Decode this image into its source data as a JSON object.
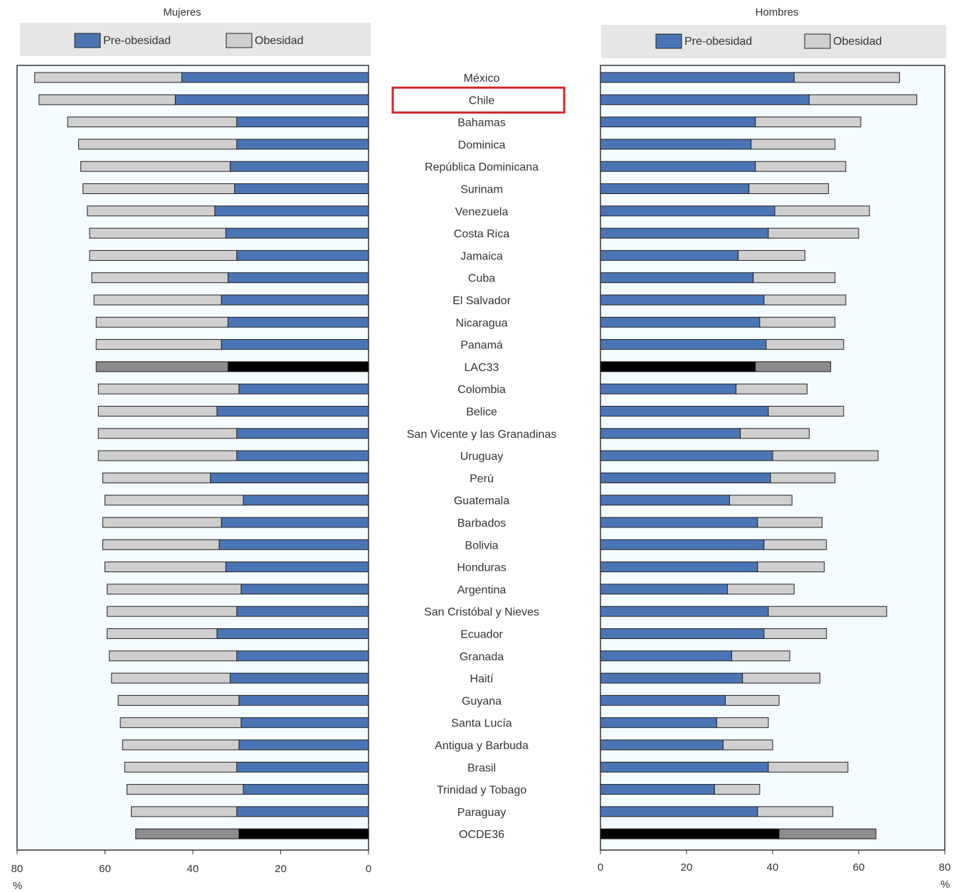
{
  "chart_data": {
    "type": "bar",
    "stacked": true,
    "orientation": "horizontal",
    "unit_label": "%",
    "highlighted": "Chile",
    "legend": [
      "Pre-obesidad",
      "Obesidad"
    ],
    "categories": [
      "México",
      "Chile",
      "Bahamas",
      "Dominica",
      "República Dominicana",
      "Surinam",
      "Venezuela",
      "Costa Rica",
      "Jamaica",
      "Cuba",
      "El Salvador",
      "Nicaragua",
      "Panamá",
      "LAC33",
      "Colombia",
      "Belice",
      "San Vicente y las Granadinas",
      "Uruguay",
      "Perú",
      "Guatemala",
      "Barbados",
      "Bolivia",
      "Honduras",
      "Argentina",
      "San Cristóbal y Nieves",
      "Ecuador",
      "Granada",
      "Haití",
      "Guyana",
      "Santa Lucía",
      "Antigua y Barbuda",
      "Brasil",
      "Trinidad y Tobago",
      "Paraguay",
      "OCDE36"
    ],
    "aggregate_categories": [
      "LAC33",
      "OCDE36"
    ],
    "colors": {
      "pre": "#4a75b5",
      "obe": "#cfcfcf",
      "agg_pre": "#000000",
      "agg_obe": "#8c8c8c",
      "highlight": "#d0282c",
      "panel_bg": "#f5fcff",
      "legend_bg": "#e6e6e6"
    },
    "panels": [
      {
        "title": "Mujeres",
        "xlim": [
          80,
          0
        ],
        "xticks": [
          80,
          60,
          40,
          20,
          0
        ],
        "series": [
          {
            "name": "Pre-obesidad",
            "values": [
              42.5,
              44,
              30,
              30,
              31.5,
              30.5,
              35,
              32.5,
              30,
              32,
              33.5,
              32,
              33.5,
              32,
              29.5,
              34.5,
              30,
              30,
              36,
              28.5,
              33.5,
              34,
              32.5,
              29,
              30,
              34.5,
              30,
              31.5,
              29.5,
              29,
              29.5,
              30,
              28.5,
              30,
              29.5
            ]
          },
          {
            "name": "Obesidad",
            "values": [
              33.5,
              31,
              38.5,
              36,
              34,
              34.5,
              29,
              31,
              33.5,
              31,
              29,
              30,
              28.5,
              30,
              32,
              27,
              31.5,
              31.5,
              24.5,
              31.5,
              27,
              26.5,
              27.5,
              30.5,
              29.5,
              25,
              29,
              27,
              27.5,
              27.5,
              26.5,
              25.5,
              26.5,
              24,
              23.5
            ]
          }
        ]
      },
      {
        "title": "Hombres",
        "xlim": [
          0,
          80
        ],
        "xticks": [
          0,
          20,
          40,
          60,
          80
        ],
        "series": [
          {
            "name": "Pre-obesidad",
            "values": [
              45,
              48.5,
              36,
              35,
              36,
              34.5,
              40.5,
              39,
              32,
              35.5,
              38,
              37,
              38.5,
              36,
              31.5,
              39,
              32.5,
              40,
              39.5,
              30,
              36.5,
              38,
              36.5,
              29.5,
              39,
              38,
              30.5,
              33,
              29,
              27,
              28.5,
              39,
              26.5,
              36.5,
              41.5
            ]
          },
          {
            "name": "Obesidad",
            "values": [
              24.5,
              25,
              24.5,
              19.5,
              21,
              18.5,
              22,
              21,
              15.5,
              19,
              19,
              17.5,
              18,
              17.5,
              16.5,
              17.5,
              16,
              24.5,
              15,
              14.5,
              15,
              14.5,
              15.5,
              15.5,
              27.5,
              14.5,
              13.5,
              18,
              12.5,
              12,
              11.5,
              18.5,
              10.5,
              17.5,
              22.5
            ]
          }
        ]
      }
    ]
  }
}
